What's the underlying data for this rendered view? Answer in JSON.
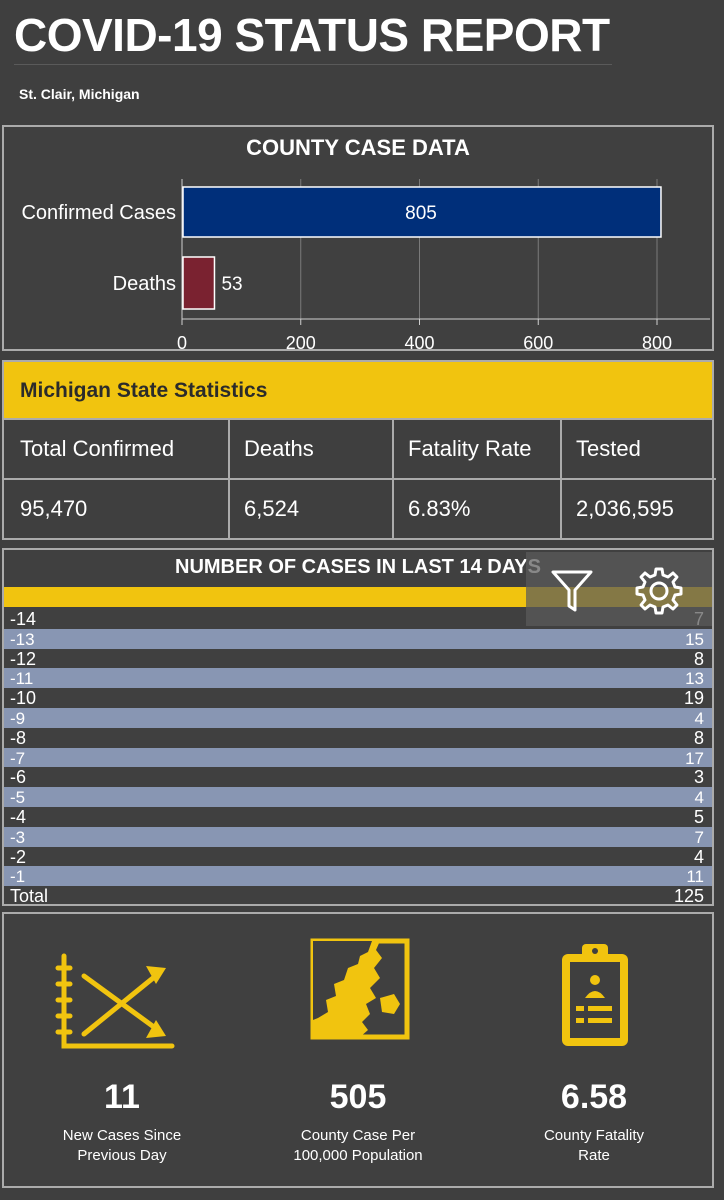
{
  "header": {
    "title": "COVID-19 STATUS REPORT",
    "subtitle": "St. Clair, Michigan"
  },
  "county": {
    "title": "COUNTY CASE DATA",
    "chart_data": {
      "type": "bar",
      "orientation": "horizontal",
      "categories": [
        "Confirmed Cases",
        "Deaths"
      ],
      "values": [
        805,
        53
      ],
      "colors": [
        "#002f7a",
        "#7a2230"
      ],
      "xticks": [
        "0",
        "200",
        "400",
        "600",
        "800"
      ],
      "xlim": [
        0,
        900
      ],
      "grid": true
    }
  },
  "state": {
    "title": "Michigan State Statistics",
    "columns": [
      {
        "label": "Total Confirmed",
        "value": "95,470"
      },
      {
        "label": "Deaths",
        "value": "6,524"
      },
      {
        "label": "Fatality Rate",
        "value": "6.83%"
      },
      {
        "label": "Tested",
        "value": "2,036,595"
      }
    ]
  },
  "days": {
    "title": "NUMBER OF CASES IN LAST 14 DAYS",
    "rows": [
      {
        "label": "-14",
        "value": "7"
      },
      {
        "label": "-13",
        "value": "15"
      },
      {
        "label": "-12",
        "value": "8"
      },
      {
        "label": "-11",
        "value": "13"
      },
      {
        "label": "-10",
        "value": "19"
      },
      {
        "label": "-9",
        "value": "4"
      },
      {
        "label": "-8",
        "value": "8"
      },
      {
        "label": "-7",
        "value": "17"
      },
      {
        "label": "-6",
        "value": "3"
      },
      {
        "label": "-5",
        "value": "4"
      },
      {
        "label": "-4",
        "value": "5"
      },
      {
        "label": "-3",
        "value": "7"
      },
      {
        "label": "-2",
        "value": "4"
      },
      {
        "label": "-1",
        "value": "11"
      },
      {
        "label": "Total",
        "value": "125"
      }
    ],
    "tools": [
      "filter-icon",
      "gear-icon"
    ]
  },
  "indicators": [
    {
      "icon": "trend-cross-icon",
      "value": "11",
      "label": "New Cases Since\nPrevious Day"
    },
    {
      "icon": "county-map-icon",
      "value": "505",
      "label": "County Case Per\n100,000 Population"
    },
    {
      "icon": "clipboard-report-icon",
      "value": "6.58",
      "label": "County Fatality\nRate"
    }
  ],
  "colors": {
    "background": "#3f3f3f",
    "accent": "#f1c40f",
    "row_alt": "#8896b3",
    "border": "#ababab"
  }
}
